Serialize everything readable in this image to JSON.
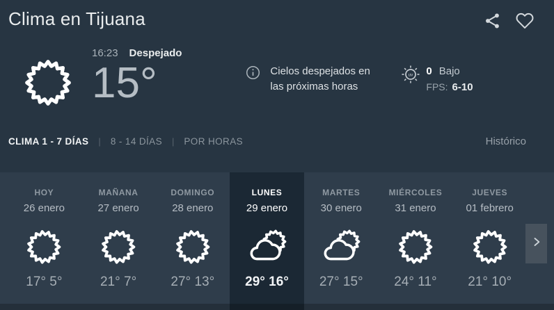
{
  "header": {
    "title": "Clima en Tijuana",
    "share_icon": "share-icon",
    "favorite_icon": "heart-outline-icon"
  },
  "current": {
    "time": "16:23",
    "condition": "Despejado",
    "temperature": "15°",
    "condition_icon": "sun-icon",
    "info_icon": "info-circle-icon",
    "info_text": "Cielos despejados en las próximas horas",
    "uv": {
      "icon": "uv-sun-icon",
      "value": "0",
      "level": "Bajo",
      "fps_label": "FPS:",
      "fps_value": "6-10"
    }
  },
  "tabs": {
    "separator": "|",
    "items": [
      {
        "label": "CLIMA 1 - 7 DÍAS",
        "active": true
      },
      {
        "label": "8 - 14 DÍAS",
        "active": false
      },
      {
        "label": "POR HORAS",
        "active": false
      }
    ],
    "historic_label": "Histórico"
  },
  "forecast": {
    "next_button_icon": "chevron-right-icon",
    "days": [
      {
        "name": "HOY",
        "date": "26 enero",
        "icon": "sun",
        "high": "17°",
        "low": "5°",
        "selected": false
      },
      {
        "name": "MAÑANA",
        "date": "27 enero",
        "icon": "sun",
        "high": "21°",
        "low": "7°",
        "selected": false
      },
      {
        "name": "DOMINGO",
        "date": "28 enero",
        "icon": "sun",
        "high": "27°",
        "low": "13°",
        "selected": false
      },
      {
        "name": "LUNES",
        "date": "29 enero",
        "icon": "partly-cloudy",
        "high": "29°",
        "low": "16°",
        "selected": true
      },
      {
        "name": "MARTES",
        "date": "30 enero",
        "icon": "partly-cloudy",
        "high": "27°",
        "low": "15°",
        "selected": false
      },
      {
        "name": "MIÉRCOLES",
        "date": "31 enero",
        "icon": "sun",
        "high": "24°",
        "low": "11°",
        "selected": false
      },
      {
        "name": "JUEVES",
        "date": "01 febrero",
        "icon": "sun",
        "high": "21°",
        "low": "10°",
        "selected": false
      }
    ]
  },
  "colors": {
    "background": "#273542",
    "panel": "#2f3d4b",
    "selected_day": "#1b2834",
    "button": "#47525d",
    "text_primary": "#ffffff",
    "text_secondary": "#97a1aa"
  }
}
